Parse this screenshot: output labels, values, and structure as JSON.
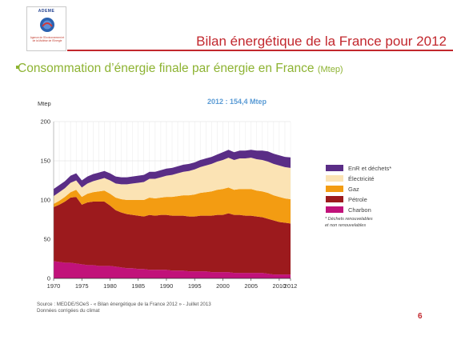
{
  "logo": {
    "name": "ADEME",
    "subtitle": "Agence de l'Environnement et de la Maîtrise de l'Energie"
  },
  "slide_title": "Bilan énergétique de la France pour 2012",
  "subtitle": {
    "text": "Consommation d’énergie finale par énergie en France",
    "unit": "(Mtep)"
  },
  "source": {
    "line1": "Source : MEDDE/SOeS - « Bilan énergétique de la France 2012 » - Juillet 2013",
    "line2": "Données corrigées du climat"
  },
  "page_number": "6",
  "colors": {
    "accent": "#c2272d",
    "green": "#8db332"
  },
  "chart_data": {
    "type": "area",
    "stacked": true,
    "title": "2012 : 154,4 Mtep",
    "ylabel": "Mtep",
    "xlabel": "",
    "ylim": [
      0,
      200
    ],
    "yticks": [
      0,
      50,
      100,
      150,
      200
    ],
    "xticks": [
      "1970",
      "1975",
      "1980",
      "1985",
      "1990",
      "1995",
      "2000",
      "2005",
      "2010",
      "2012"
    ],
    "grid": true,
    "legend_position": "right",
    "legend_note": "* Déchets renouvelables\net non renouvelables",
    "x": [
      1970,
      1971,
      1972,
      1973,
      1974,
      1975,
      1976,
      1977,
      1978,
      1979,
      1980,
      1981,
      1982,
      1983,
      1984,
      1985,
      1986,
      1987,
      1988,
      1989,
      1990,
      1991,
      1992,
      1993,
      1994,
      1995,
      1996,
      1997,
      1998,
      1999,
      2000,
      2001,
      2002,
      2003,
      2004,
      2005,
      2006,
      2007,
      2008,
      2009,
      2010,
      2011,
      2012
    ],
    "series": [
      {
        "name": "Charbon",
        "color": "#c1127a",
        "values": [
          22,
          21,
          20,
          20,
          19,
          18,
          17,
          17,
          16,
          16,
          16,
          15,
          14,
          13,
          13,
          12,
          12,
          11,
          11,
          11,
          11,
          10,
          10,
          10,
          9,
          9,
          9,
          9,
          8,
          8,
          8,
          8,
          7,
          7,
          7,
          7,
          7,
          7,
          6,
          5,
          5,
          5,
          5
        ]
      },
      {
        "name": "Pétrole",
        "color": "#9c1a1d",
        "values": [
          69,
          73,
          78,
          83,
          85,
          76,
          80,
          81,
          82,
          82,
          77,
          72,
          70,
          69,
          68,
          68,
          67,
          70,
          69,
          70,
          70,
          70,
          70,
          70,
          70,
          70,
          71,
          71,
          72,
          73,
          73,
          75,
          74,
          74,
          73,
          73,
          72,
          71,
          70,
          69,
          67,
          66,
          65
        ]
      },
      {
        "name": "Gaz",
        "color": "#f39c12",
        "values": [
          4,
          5,
          6,
          7,
          9,
          10,
          11,
          12,
          13,
          14,
          15,
          16,
          17,
          18,
          19,
          20,
          21,
          22,
          22,
          22,
          23,
          24,
          25,
          26,
          27,
          28,
          29,
          30,
          31,
          32,
          33,
          33,
          32,
          33,
          34,
          34,
          33,
          33,
          33,
          32,
          32,
          31,
          31
        ]
      },
      {
        "name": "Électricité",
        "color": "#fbe3b4",
        "values": [
          10,
          11,
          11,
          12,
          12,
          12,
          13,
          14,
          15,
          16,
          17,
          18,
          19,
          20,
          21,
          22,
          23,
          24,
          25,
          26,
          27,
          28,
          29,
          30,
          31,
          32,
          33,
          34,
          35,
          36,
          37,
          38,
          38,
          39,
          39,
          40,
          40,
          40,
          40,
          40,
          40,
          40,
          40
        ]
      },
      {
        "name": "EnR et déchets*",
        "color": "#5a2d86",
        "values": [
          9,
          9,
          9,
          9,
          9,
          9,
          9,
          9,
          9,
          9,
          9,
          9,
          9,
          9,
          9,
          9,
          9,
          9,
          9,
          9,
          9,
          9,
          9,
          9,
          9,
          9,
          9,
          9,
          9,
          9,
          10,
          10,
          10,
          10,
          10,
          10,
          11,
          12,
          13,
          13,
          13,
          13,
          13.4
        ]
      }
    ]
  }
}
